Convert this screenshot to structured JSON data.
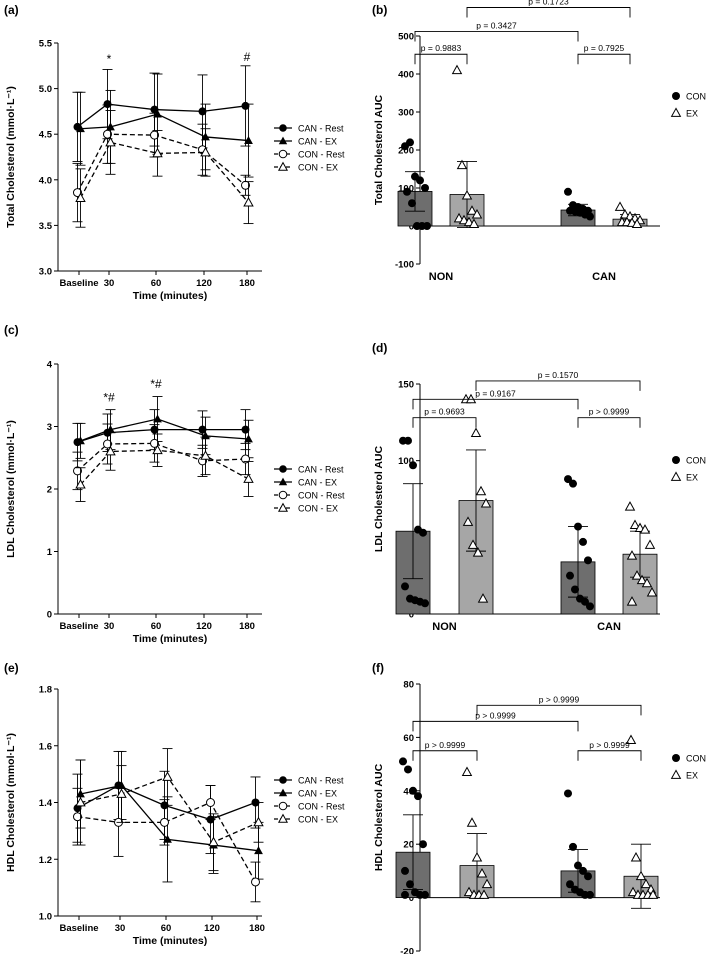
{
  "chart_data": [
    {
      "panel": "(a)",
      "type": "line",
      "x": [
        "Baseline",
        "30",
        "60",
        "120",
        "180"
      ],
      "xlabel": "Time (minutes)",
      "ylabel": "Total Cholesterol (mmol·L⁻¹)",
      "ylim": [
        3.0,
        5.5
      ],
      "yticks": [
        "3.0",
        "3.5",
        "4.0",
        "4.5",
        "5.0",
        "5.5"
      ],
      "series": [
        {
          "name": "CAN - Rest",
          "marker": "filled-circle",
          "dash": false,
          "values": [
            4.58,
            4.83,
            4.77,
            4.75,
            4.81
          ],
          "err": [
            0.38,
            0.38,
            0.4,
            0.4,
            0.44
          ]
        },
        {
          "name": "CAN - EX",
          "marker": "filled-triangle",
          "dash": false,
          "values": [
            4.56,
            4.58,
            4.72,
            4.47,
            4.43
          ],
          "err": [
            0.4,
            0.4,
            0.44,
            0.36,
            0.4
          ]
        },
        {
          "name": "CON - Rest",
          "marker": "open-circle",
          "dash": true,
          "values": [
            3.86,
            4.5,
            4.49,
            4.33,
            3.94
          ],
          "err": [
            0.32,
            0.32,
            0.24,
            0.28,
            0.11
          ]
        },
        {
          "name": "CON - EX",
          "marker": "open-triangle",
          "dash": true,
          "values": [
            3.8,
            4.41,
            4.29,
            4.3,
            3.75
          ],
          "err": [
            0.32,
            0.35,
            0.25,
            0.26,
            0.23
          ]
        }
      ],
      "annotations": [
        {
          "x": "30",
          "y": 5.28,
          "text": "*"
        },
        {
          "x": "180",
          "y": 5.3,
          "text": "#"
        }
      ],
      "legend": "right"
    },
    {
      "panel": "(b)",
      "type": "bar",
      "categories": [
        "NON",
        "CAN"
      ],
      "ylabel": "Total Cholesterol AUC",
      "ylim": [
        -100,
        500
      ],
      "yticks": [
        "-100",
        "0",
        "100",
        "200",
        "300",
        "400",
        "500"
      ],
      "series": [
        {
          "name": "CON",
          "marker": "filled-circle",
          "values": [
            91,
            42
          ],
          "err": [
            52,
            15
          ],
          "points": [
            [
              210,
              220,
              130,
              120,
              100,
              90,
              60,
              0,
              0,
              0
            ],
            [
              90,
              55,
              50,
              45,
              40,
              40,
              38,
              35,
              30,
              25
            ]
          ]
        },
        {
          "name": "EX",
          "marker": "open-triangle",
          "values": [
            83,
            18
          ],
          "err": [
            87,
            12
          ],
          "points": [
            [
              410,
              160,
              80,
              40,
              30,
              20,
              15,
              10,
              5
            ],
            [
              50,
              30,
              25,
              20,
              15,
              10,
              10,
              8,
              5
            ]
          ]
        }
      ],
      "comparisons": [
        {
          "text": "p = 0.9883",
          "from": [
            0,
            0
          ],
          "to": [
            0,
            1
          ],
          "y": 452
        },
        {
          "text": "p = 0.7925",
          "from": [
            1,
            0
          ],
          "to": [
            1,
            1
          ],
          "y": 452
        },
        {
          "text": "p = 0.3427",
          "from": [
            0,
            0
          ],
          "to": [
            1,
            0
          ],
          "y": 512
        },
        {
          "text": "p = 0.1723",
          "from": [
            0,
            1
          ],
          "to": [
            1,
            1
          ],
          "y": 575
        }
      ],
      "legend": "right"
    },
    {
      "panel": "(c)",
      "type": "line",
      "x": [
        "Baseline",
        "30",
        "60",
        "120",
        "180"
      ],
      "xlabel": "Time (minutes)",
      "ylabel": "LDL Cholesterol (mmol·L⁻¹)",
      "ylim": [
        0,
        4
      ],
      "yticks": [
        "0",
        "1",
        "2",
        "3",
        "4"
      ],
      "series": [
        {
          "name": "CAN - Rest",
          "marker": "filled-circle",
          "dash": false,
          "values": [
            2.75,
            2.9,
            2.95,
            2.95,
            2.95
          ],
          "err": [
            0.3,
            0.3,
            0.32,
            0.3,
            0.32
          ]
        },
        {
          "name": "CAN - EX",
          "marker": "filled-triangle",
          "dash": false,
          "values": [
            2.77,
            2.95,
            3.12,
            2.85,
            2.8
          ],
          "err": [
            0.28,
            0.32,
            0.36,
            0.3,
            0.3
          ]
        },
        {
          "name": "CON - Rest",
          "marker": "open-circle",
          "dash": true,
          "values": [
            2.29,
            2.72,
            2.73,
            2.45,
            2.48
          ],
          "err": [
            0.3,
            0.32,
            0.3,
            0.25,
            0.25
          ]
        },
        {
          "name": "CON - EX",
          "marker": "open-triangle",
          "dash": true,
          "values": [
            2.07,
            2.6,
            2.62,
            2.53,
            2.16
          ],
          "err": [
            0.27,
            0.3,
            0.26,
            0.3,
            0.28
          ]
        }
      ],
      "annotations": [
        {
          "x": "30",
          "y": 3.4,
          "text": "*#"
        },
        {
          "x": "60",
          "y": 3.62,
          "text": "*#"
        }
      ],
      "legend": "right"
    },
    {
      "panel": "(d)",
      "type": "bar",
      "categories": [
        "NON",
        "CAN"
      ],
      "ylabel": "LDL Cholesterol AUC",
      "ylim": [
        0,
        150
      ],
      "yticks": [
        "0",
        "50",
        "100",
        "150"
      ],
      "series": [
        {
          "name": "CON",
          "marker": "filled-circle",
          "values": [
            54,
            34
          ],
          "err": [
            31,
            23
          ],
          "points": [
            [
              113,
              113,
              97,
              55,
              53,
              18,
              10,
              9,
              8,
              7
            ],
            [
              88,
              85,
              57,
              47,
              35,
              25,
              16,
              10,
              8,
              5
            ]
          ]
        },
        {
          "name": "EX",
          "marker": "open-triangle",
          "values": [
            74,
            39
          ],
          "err": [
            33,
            15
          ],
          "points": [
            [
              140,
              140,
              118,
              80,
              72,
              60,
              45,
              40,
              10
            ],
            [
              70,
              58,
              56,
              55,
              45,
              38,
              25,
              22,
              20,
              14,
              8
            ]
          ]
        }
      ],
      "comparisons": [
        {
          "text": "p = 0.9693",
          "from": [
            0,
            0
          ],
          "to": [
            0,
            1
          ],
          "y": 128
        },
        {
          "text": "p > 0.9999",
          "from": [
            1,
            0
          ],
          "to": [
            1,
            1
          ],
          "y": 128
        },
        {
          "text": "p = 0.9167",
          "from": [
            0,
            0
          ],
          "to": [
            1,
            0
          ],
          "y": 140
        },
        {
          "text": "p = 0.1570",
          "from": [
            0,
            1
          ],
          "to": [
            1,
            1
          ],
          "y": 152
        }
      ],
      "legend": "right"
    },
    {
      "panel": "(e)",
      "type": "line",
      "x": [
        "Baseline",
        "30",
        "60",
        "120",
        "180"
      ],
      "xlabel": "Time (minutes)",
      "ylabel": "HDL Cholesterol (mmol·L⁻¹)",
      "ylim": [
        1.0,
        1.8
      ],
      "yticks": [
        "1.0",
        "1.2",
        "1.4",
        "1.6",
        "1.8"
      ],
      "series": [
        {
          "name": "CAN - Rest",
          "marker": "filled-circle",
          "dash": false,
          "values": [
            1.38,
            1.46,
            1.39,
            1.34,
            1.4
          ],
          "err": [
            0.12,
            0.12,
            0.12,
            0.12,
            0.09
          ]
        },
        {
          "name": "CAN - EX",
          "marker": "filled-triangle",
          "dash": false,
          "values": [
            1.43,
            1.46,
            1.27,
            1.25,
            1.23
          ],
          "err": [
            0.12,
            0.12,
            0.15,
            0.1,
            0.1
          ]
        },
        {
          "name": "CON - Rest",
          "marker": "open-circle",
          "dash": true,
          "values": [
            1.35,
            1.33,
            1.33,
            1.4,
            1.12
          ],
          "err": [
            0.1,
            0.12,
            0.08,
            0.06,
            0.07
          ]
        },
        {
          "name": "CON - EX",
          "marker": "open-triangle",
          "dash": true,
          "values": [
            1.4,
            1.43,
            1.49,
            1.26,
            1.33
          ],
          "err": [
            0.15,
            0.1,
            0.1,
            0.1,
            0.07
          ]
        }
      ],
      "annotations": [],
      "legend": "right"
    },
    {
      "panel": "(f)",
      "type": "bar",
      "categories": [
        "NON",
        "CAN"
      ],
      "ylabel": "HDL Cholesterol AUC",
      "ylim": [
        -20,
        80
      ],
      "yticks": [
        "-20",
        "0",
        "20",
        "40",
        "60",
        "80"
      ],
      "series": [
        {
          "name": "CON",
          "marker": "filled-circle",
          "values": [
            17,
            10
          ],
          "err": [
            14,
            8
          ],
          "points": [
            [
              51,
              48,
              40,
              38,
              20,
              10,
              5,
              2,
              1,
              1,
              1
            ],
            [
              39,
              19,
              12,
              10,
              8,
              5,
              3,
              2,
              1,
              1
            ]
          ]
        },
        {
          "name": "EX",
          "marker": "open-triangle",
          "values": [
            12,
            8
          ],
          "err": [
            12,
            12
          ],
          "points": [
            [
              47,
              28,
              15,
              9,
              5,
              2,
              1,
              1,
              1
            ],
            [
              59,
              15,
              8,
              5,
              3,
              2,
              1,
              1,
              1,
              1
            ]
          ]
        }
      ],
      "comparisons": [
        {
          "text": "p > 0.9999",
          "from": [
            0,
            0
          ],
          "to": [
            0,
            1
          ],
          "y": 55
        },
        {
          "text": "p > 0.9999",
          "from": [
            1,
            0
          ],
          "to": [
            1,
            1
          ],
          "y": 55
        },
        {
          "text": "p > 0.9999",
          "from": [
            0,
            0
          ],
          "to": [
            1,
            0
          ],
          "y": 66
        },
        {
          "text": "p > 0.9999",
          "from": [
            0,
            1
          ],
          "to": [
            1,
            1
          ],
          "y": 72
        }
      ],
      "legend": "right"
    }
  ]
}
